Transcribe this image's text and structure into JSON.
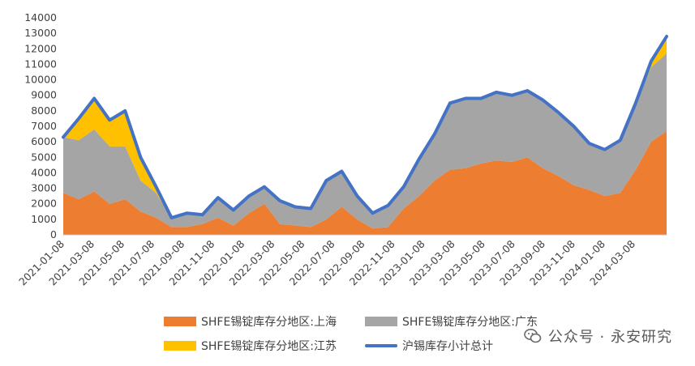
{
  "chart_data": {
    "type": "area",
    "stacked": true,
    "ylim": [
      0,
      14000
    ],
    "yticks": [
      0,
      1000,
      2000,
      3000,
      4000,
      5000,
      6000,
      7000,
      8000,
      9000,
      10000,
      11000,
      12000,
      13000,
      14000
    ],
    "x_tick_labels": [
      "2021-01-08",
      "2021-03-08",
      "2021-05-08",
      "2021-07-08",
      "2021-09-08",
      "2021-11-08",
      "2022-01-08",
      "2022-03-08",
      "2022-05-08",
      "2022-07-08",
      "2022-09-08",
      "2022-11-08",
      "2023-01-08",
      "2023-03-08",
      "2023-05-08",
      "2023-07-08",
      "2023-09-08",
      "2023-11-08",
      "2024-01-08",
      "2024-03-08"
    ],
    "x": [
      "2021-01-08",
      "2021-02-08",
      "2021-03-08",
      "2021-04-08",
      "2021-05-08",
      "2021-06-08",
      "2021-07-08",
      "2021-08-08",
      "2021-09-08",
      "2021-10-08",
      "2021-11-08",
      "2021-12-08",
      "2022-01-08",
      "2022-02-08",
      "2022-03-08",
      "2022-04-08",
      "2022-05-08",
      "2022-06-08",
      "2022-07-08",
      "2022-08-08",
      "2022-09-08",
      "2022-10-08",
      "2022-11-08",
      "2022-12-08",
      "2023-01-08",
      "2023-02-08",
      "2023-03-08",
      "2023-04-08",
      "2023-05-08",
      "2023-06-08",
      "2023-07-08",
      "2023-08-08",
      "2023-09-08",
      "2023-10-08",
      "2023-11-08",
      "2023-12-08",
      "2024-01-08",
      "2024-02-08",
      "2024-03-08",
      "2024-04-08"
    ],
    "series": [
      {
        "name": "SHFE锡锭库存分地区:上海",
        "color": "#ED7D31",
        "type": "area",
        "values": [
          2700,
          2300,
          2800,
          2000,
          2300,
          1500,
          1100,
          500,
          500,
          700,
          1100,
          600,
          1400,
          2000,
          700,
          600,
          500,
          1000,
          1800,
          1000,
          400,
          500,
          1700,
          2500,
          3500,
          4200,
          4300,
          4600,
          4800,
          4700,
          5000,
          4300,
          3800,
          3200,
          2900,
          2500,
          2700,
          4200,
          6000,
          6700
        ]
      },
      {
        "name": "SHFE锡锭库存分地区:广东",
        "color": "#A5A5A5",
        "type": "area",
        "values": [
          3600,
          3800,
          4000,
          3700,
          3400,
          2000,
          1600,
          600,
          900,
          600,
          1300,
          1000,
          1100,
          1100,
          1500,
          1200,
          1200,
          2500,
          2300,
          1500,
          1000,
          1400,
          1400,
          2400,
          3000,
          4300,
          4500,
          4200,
          4400,
          4300,
          4300,
          4400,
          4100,
          3800,
          3000,
          3000,
          3400,
          4300,
          4800,
          5000
        ]
      },
      {
        "name": "SHFE锡锭库存分地区:江苏",
        "color": "#FFC000",
        "type": "area",
        "values": [
          0,
          1400,
          2000,
          1700,
          2300,
          1500,
          400,
          0,
          0,
          0,
          0,
          0,
          0,
          0,
          0,
          0,
          0,
          0,
          0,
          0,
          0,
          0,
          0,
          0,
          0,
          0,
          0,
          0,
          0,
          0,
          0,
          0,
          0,
          0,
          0,
          0,
          0,
          0,
          400,
          1100
        ]
      },
      {
        "name": "沪锡库存小计总计",
        "color": "#4472C4",
        "type": "line",
        "values": [
          6300,
          7500,
          8800,
          7400,
          8000,
          5000,
          3100,
          1100,
          1400,
          1300,
          2400,
          1600,
          2500,
          3100,
          2200,
          1800,
          1700,
          3500,
          4100,
          2500,
          1400,
          1900,
          3100,
          4900,
          6500,
          8500,
          8800,
          8800,
          9200,
          9000,
          9300,
          8700,
          7900,
          7000,
          5900,
          5500,
          6100,
          8500,
          11200,
          12800
        ]
      }
    ]
  },
  "watermark": {
    "text": "公众号 · 永安研究"
  }
}
